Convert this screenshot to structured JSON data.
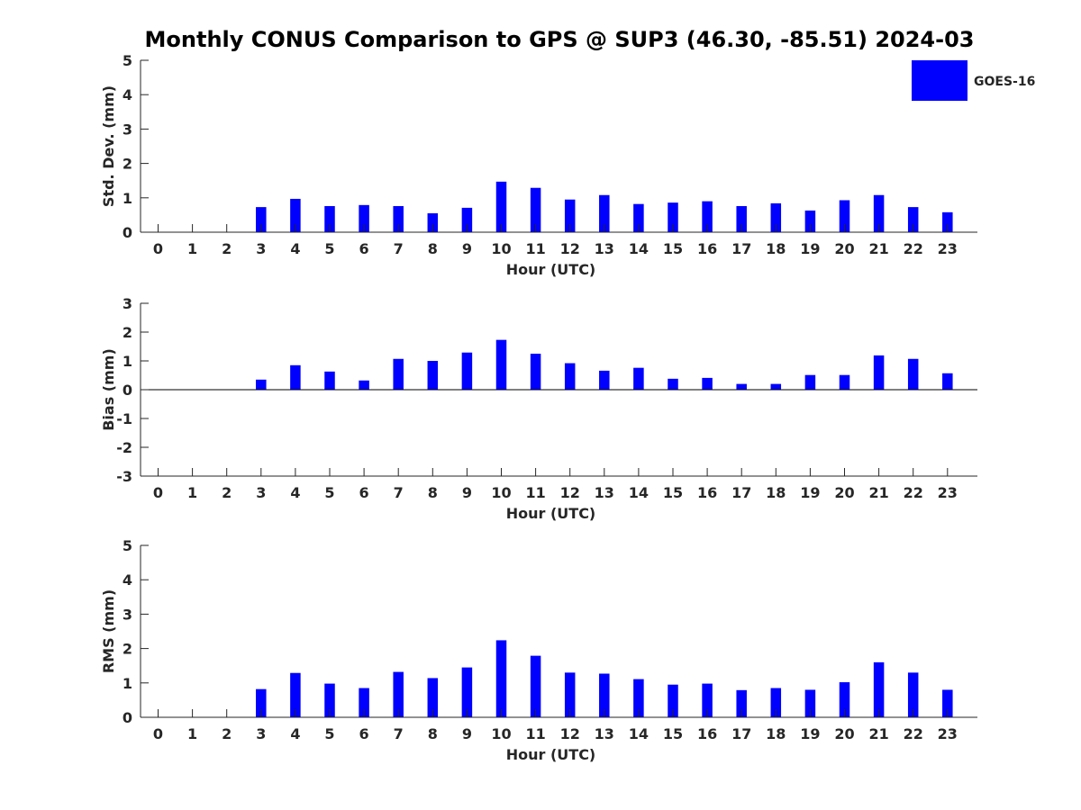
{
  "chart_data": {
    "title": "Monthly CONUS Comparison to GPS @ SUP3 (46.30, -85.51) 2024-03",
    "legend": {
      "label": "GOES-16",
      "color": "#0000ff",
      "placement": "top-right"
    },
    "bar_color": "#0000ff",
    "grid": false,
    "panels": [
      {
        "type": "bar",
        "xlabel": "Hour (UTC)",
        "ylabel": "Std. Dev. (mm)",
        "ylim": [
          0,
          5
        ],
        "yticks": [
          0,
          1,
          2,
          3,
          4,
          5
        ],
        "categories": [
          0,
          1,
          2,
          3,
          4,
          5,
          6,
          7,
          8,
          9,
          10,
          11,
          12,
          13,
          14,
          15,
          16,
          17,
          18,
          19,
          20,
          21,
          22,
          23
        ],
        "series": [
          {
            "name": "GOES-16",
            "values": [
              null,
              null,
              null,
              0.73,
              0.97,
              0.76,
              0.79,
              0.76,
              0.55,
              0.71,
              1.47,
              1.29,
              0.95,
              1.08,
              0.82,
              0.86,
              0.9,
              0.76,
              0.84,
              0.63,
              0.93,
              1.08,
              0.73,
              0.58
            ]
          }
        ]
      },
      {
        "type": "bar",
        "xlabel": "Hour (UTC)",
        "ylabel": "Bias (mm)",
        "ylim": [
          -3,
          3
        ],
        "yticks": [
          -3,
          -2,
          -1,
          0,
          1,
          2,
          3
        ],
        "categories": [
          0,
          1,
          2,
          3,
          4,
          5,
          6,
          7,
          8,
          9,
          10,
          11,
          12,
          13,
          14,
          15,
          16,
          17,
          18,
          19,
          20,
          21,
          22,
          23
        ],
        "series": [
          {
            "name": "GOES-16",
            "values": [
              null,
              null,
              null,
              0.35,
              0.85,
              0.63,
              0.32,
              1.07,
              1.0,
              1.29,
              1.73,
              1.25,
              0.92,
              0.66,
              0.76,
              0.38,
              0.41,
              0.2,
              0.2,
              0.51,
              0.51,
              1.19,
              1.07,
              0.57
            ]
          }
        ]
      },
      {
        "type": "bar",
        "xlabel": "Hour (UTC)",
        "ylabel": "RMS (mm)",
        "ylim": [
          0,
          5
        ],
        "yticks": [
          0,
          1,
          2,
          3,
          4,
          5
        ],
        "categories": [
          0,
          1,
          2,
          3,
          4,
          5,
          6,
          7,
          8,
          9,
          10,
          11,
          12,
          13,
          14,
          15,
          16,
          17,
          18,
          19,
          20,
          21,
          22,
          23
        ],
        "series": [
          {
            "name": "GOES-16",
            "values": [
              null,
              null,
              null,
              0.82,
              1.29,
              0.98,
              0.85,
              1.32,
              1.14,
              1.45,
              2.24,
              1.79,
              1.3,
              1.27,
              1.11,
              0.95,
              0.98,
              0.79,
              0.85,
              0.8,
              1.02,
              1.6,
              1.3,
              0.8
            ]
          }
        ]
      }
    ]
  }
}
